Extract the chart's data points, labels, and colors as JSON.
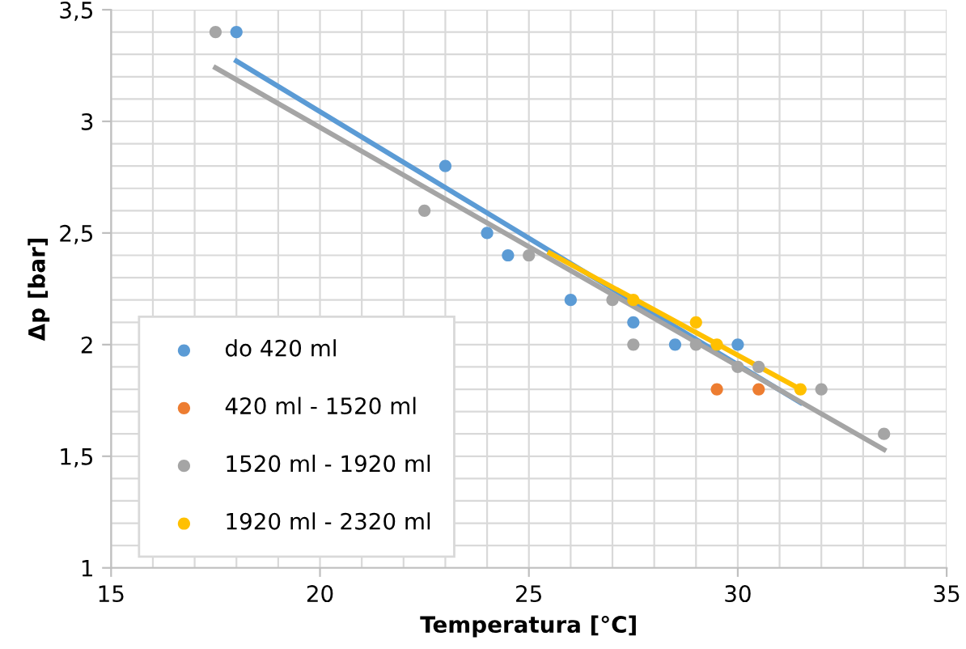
{
  "chart_data": {
    "type": "scatter",
    "xlabel": "Temperatura [°C]",
    "ylabel": "Δp [bar]",
    "xlim": [
      15,
      35
    ],
    "ylim": [
      1,
      3.5
    ],
    "xticks": [
      15,
      20,
      25,
      30,
      35
    ],
    "yticks": [
      1,
      {
        "value": 1.5,
        "label": "1,5"
      },
      2,
      {
        "value": 2.5,
        "label": "2,5"
      },
      3,
      {
        "value": 3.5,
        "label": "3,5"
      }
    ],
    "grid": true,
    "legend": "bottom left",
    "marker": "circle",
    "series": [
      {
        "name": "do 420 ml",
        "color": "#5b9bd5",
        "x": [
          18,
          23,
          24,
          24.5,
          26,
          27.5,
          28.5,
          30
        ],
        "values": [
          3.4,
          2.8,
          2.5,
          2.4,
          2.2,
          2.1,
          2.0,
          2.0
        ]
      },
      {
        "name": "420 ml - 1520 ml",
        "color": "#ed7d31",
        "x": [
          29.5,
          30.5
        ],
        "values": [
          1.8,
          1.8
        ]
      },
      {
        "name": "1520 ml - 1920 ml",
        "color": "#a5a5a5",
        "x": [
          17.5,
          22.5,
          25,
          27,
          27.5,
          29,
          30,
          30.5,
          32,
          33.5
        ],
        "values": [
          3.4,
          2.6,
          2.4,
          2.2,
          2.0,
          2.0,
          1.9,
          1.9,
          1.8,
          1.6
        ]
      },
      {
        "name": "1920 ml - 2320 ml",
        "color": "#ffc000",
        "x": [
          27.5,
          29,
          29.5,
          31.5
        ],
        "values": [
          2.2,
          2.1,
          2.0,
          1.8
        ]
      },
      {
        "type": "line",
        "marker": "none",
        "color": "#5b9bd5",
        "x": [
          18,
          31.5
        ],
        "values": [
          3.27,
          1.74
        ]
      },
      {
        "type": "line",
        "marker": "none",
        "color": "#a5a5a5",
        "x": [
          17.5,
          33.5
        ],
        "values": [
          3.24,
          1.53
        ]
      },
      {
        "type": "line",
        "marker": "none",
        "color": "#ffc000",
        "x": [
          25.5,
          31.5
        ],
        "values": [
          2.41,
          1.8
        ]
      }
    ]
  }
}
